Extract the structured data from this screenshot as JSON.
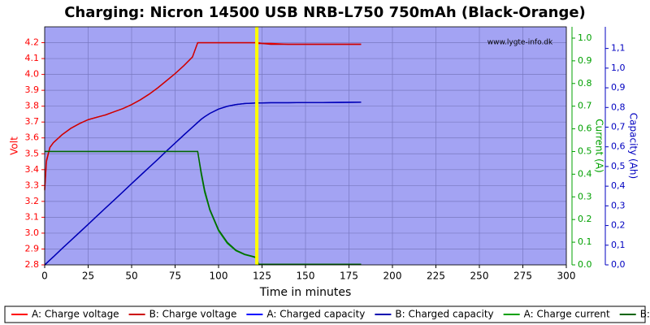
{
  "chart_data": {
    "type": "line",
    "title": "Charging: Nicron 14500 USB NRB-L750 750mAh  (Black-Orange)",
    "watermark": "www.lygte-info.dk",
    "xlabel": "Time in minutes",
    "ylabel": "Volt",
    "y2label": "Current (A)",
    "y3label": "Capacity (Ah)",
    "background": "#a3a3f3",
    "grid": true,
    "marker": {
      "x": 122,
      "color": "#ffff00"
    },
    "xlim": [
      0,
      300
    ],
    "xticks": [
      0,
      25,
      50,
      75,
      100,
      125,
      150,
      175,
      200,
      225,
      250,
      275,
      300
    ],
    "ylim": [
      2.8,
      4.3
    ],
    "yticks": [
      {
        "value": 2.8,
        "label": "2.8"
      },
      {
        "value": 2.9,
        "label": "2.9"
      },
      {
        "value": 3.0,
        "label": "3.0"
      },
      {
        "value": 3.1,
        "label": "3.1"
      },
      {
        "value": 3.2,
        "label": "3.2"
      },
      {
        "value": 3.3,
        "label": "3.3"
      },
      {
        "value": 3.4,
        "label": "3.4"
      },
      {
        "value": 3.5,
        "label": "3.5"
      },
      {
        "value": 3.6,
        "label": "3.6"
      },
      {
        "value": 3.7,
        "label": "3.7"
      },
      {
        "value": 3.8,
        "label": "3.8"
      },
      {
        "value": 3.9,
        "label": "3.9"
      },
      {
        "value": 4.0,
        "label": "4.0"
      },
      {
        "value": 4.1,
        "label": "4.1"
      },
      {
        "value": 4.2,
        "label": "4.2"
      }
    ],
    "y2lim": [
      0,
      1.05
    ],
    "y2ticks": [
      {
        "value": 0,
        "label": "0.0"
      },
      {
        "value": 0.1,
        "label": "0.1"
      },
      {
        "value": 0.2,
        "label": "0.2"
      },
      {
        "value": 0.3,
        "label": "0.3"
      },
      {
        "value": 0.4,
        "label": "0.4"
      },
      {
        "value": 0.5,
        "label": "0.5"
      },
      {
        "value": 0.6,
        "label": "0.6"
      },
      {
        "value": 0.7,
        "label": "0.7"
      },
      {
        "value": 0.8,
        "label": "0.8"
      },
      {
        "value": 0.9,
        "label": "0.9"
      },
      {
        "value": 1.0,
        "label": "1.0"
      }
    ],
    "y3lim": [
      0,
      1.21
    ],
    "y3ticks": [
      {
        "value": 0,
        "label": "0,0"
      },
      {
        "value": 0.1,
        "label": "0,1"
      },
      {
        "value": 0.2,
        "label": "0,2"
      },
      {
        "value": 0.3,
        "label": "0,3"
      },
      {
        "value": 0.4,
        "label": "0,4"
      },
      {
        "value": 0.5,
        "label": "0,5"
      },
      {
        "value": 0.6,
        "label": "0,6"
      },
      {
        "value": 0.7,
        "label": "0,7"
      },
      {
        "value": 0.8,
        "label": "0,8"
      },
      {
        "value": 0.9,
        "label": "0,9"
      },
      {
        "value": 1.0,
        "label": "1,0"
      },
      {
        "value": 1.1,
        "label": "1,1"
      }
    ],
    "x": [
      0,
      1,
      3,
      5,
      10,
      15,
      20,
      25,
      30,
      35,
      40,
      45,
      50,
      55,
      60,
      65,
      70,
      75,
      80,
      85,
      88,
      90,
      92,
      95,
      100,
      105,
      110,
      115,
      120,
      122,
      123,
      125,
      130,
      140,
      150,
      160,
      170,
      182
    ],
    "series": [
      {
        "name": "A: Charge voltage",
        "color": "#ff0000",
        "axis": "y",
        "values": [
          3.28,
          3.46,
          3.54,
          3.57,
          3.62,
          3.66,
          3.69,
          3.715,
          3.73,
          3.745,
          3.765,
          3.785,
          3.81,
          3.84,
          3.875,
          3.915,
          3.96,
          4.005,
          4.055,
          4.11,
          4.2,
          4.2,
          4.2,
          4.2,
          4.2,
          4.2,
          4.2,
          4.2,
          4.2,
          4.2,
          4.2,
          4.195,
          4.195,
          4.19,
          4.19,
          4.19,
          4.19,
          4.19
        ]
      },
      {
        "name": "B: Charge voltage",
        "color": "#cc0000",
        "axis": "y",
        "values": [
          3.27,
          3.45,
          3.54,
          3.57,
          3.62,
          3.66,
          3.69,
          3.715,
          3.73,
          3.745,
          3.765,
          3.785,
          3.81,
          3.84,
          3.875,
          3.915,
          3.96,
          4.005,
          4.055,
          4.11,
          4.2,
          4.2,
          4.2,
          4.2,
          4.2,
          4.2,
          4.2,
          4.2,
          4.2,
          4.2,
          4.195,
          4.195,
          4.19,
          4.19,
          4.19,
          4.19,
          4.19,
          4.19
        ]
      },
      {
        "name": "A: Charged capacity",
        "color": "#0000ff",
        "axis": "y3",
        "values": [
          0,
          0.008,
          0.025,
          0.041,
          0.083,
          0.124,
          0.165,
          0.206,
          0.248,
          0.289,
          0.33,
          0.371,
          0.413,
          0.454,
          0.495,
          0.536,
          0.578,
          0.619,
          0.66,
          0.7,
          0.724,
          0.74,
          0.753,
          0.77,
          0.792,
          0.806,
          0.815,
          0.82,
          0.822,
          0.823,
          0.823,
          0.823,
          0.824,
          0.824,
          0.825,
          0.825,
          0.826,
          0.827
        ]
      },
      {
        "name": "B: Charged capacity",
        "color": "#0000b0",
        "axis": "y3",
        "values": [
          0,
          0.008,
          0.025,
          0.041,
          0.083,
          0.124,
          0.165,
          0.206,
          0.248,
          0.289,
          0.33,
          0.371,
          0.413,
          0.454,
          0.495,
          0.536,
          0.578,
          0.619,
          0.66,
          0.7,
          0.724,
          0.74,
          0.753,
          0.77,
          0.792,
          0.806,
          0.815,
          0.82,
          0.822,
          0.823,
          0.823,
          0.823,
          0.824,
          0.824,
          0.825,
          0.825,
          0.826,
          0.827
        ]
      },
      {
        "name": "A: Charge current",
        "color": "#00a000",
        "axis": "y2",
        "values": [
          0.5,
          0.5,
          0.5,
          0.5,
          0.5,
          0.5,
          0.5,
          0.5,
          0.5,
          0.5,
          0.5,
          0.5,
          0.5,
          0.5,
          0.5,
          0.5,
          0.5,
          0.5,
          0.5,
          0.5,
          0.5,
          0.4,
          0.32,
          0.24,
          0.15,
          0.095,
          0.062,
          0.045,
          0.035,
          0.03,
          0.002,
          0.002,
          0.002,
          0.002,
          0.002,
          0.002,
          0.002,
          0.002
        ]
      },
      {
        "name": "B: Charge current",
        "color": "#006400",
        "axis": "y2",
        "values": [
          0.5,
          0.5,
          0.5,
          0.5,
          0.5,
          0.5,
          0.5,
          0.5,
          0.5,
          0.5,
          0.5,
          0.5,
          0.5,
          0.5,
          0.5,
          0.5,
          0.5,
          0.5,
          0.5,
          0.5,
          0.5,
          0.41,
          0.33,
          0.245,
          0.155,
          0.1,
          0.065,
          0.047,
          0.037,
          0.032,
          0.003,
          0.003,
          0.003,
          0.003,
          0.003,
          0.003,
          0.003,
          0.003
        ]
      }
    ]
  }
}
